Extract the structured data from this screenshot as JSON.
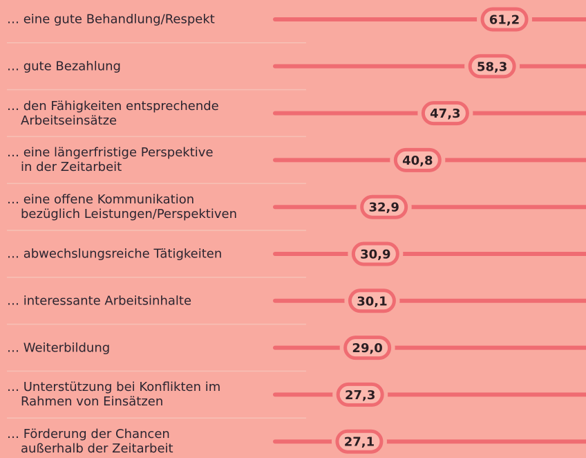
{
  "chart_data": {
    "type": "lollipop",
    "categories": [
      "… eine gute Behandlung/Respekt",
      "… gute Bezahlung",
      "… den Fähigkeiten entsprechende\nArbeitseinsätze",
      "… eine längerfristige Perspektive\nin der Zeitarbeit",
      "… eine offene Kommunikation\nbezüglich Leistungen/Perspektiven",
      "… abwechslungsreiche Tätigkeiten",
      "… interessante Arbeitsinhalte",
      "… Weiterbildung",
      "… Unterstützung bei Konflikten im\nRahmen von Einsätzen",
      "… Förderung der Chancen\naußerhalb der Zeitarbeit"
    ],
    "values": [
      61.2,
      58.3,
      47.3,
      40.8,
      32.9,
      30.9,
      30.1,
      29.0,
      27.3,
      27.1
    ],
    "value_labels": [
      "61,2",
      "58,3",
      "47,3",
      "40,8",
      "32,9",
      "30,9",
      "30,1",
      "29,0",
      "27,3",
      "27,1"
    ],
    "color": "#ef6c72"
  }
}
